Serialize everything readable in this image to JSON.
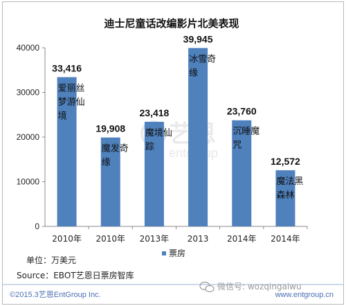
{
  "chart_data": {
    "type": "bar",
    "title": "迪士尼童话改编影片北美表现",
    "categories": [
      "2010年",
      "2010年",
      "2013年",
      "2013",
      "2014年",
      "2014年"
    ],
    "films": [
      "爱丽丝梦游仙境",
      "魔发奇缘",
      "魔境仙踪",
      "冰雪奇缘",
      "沉睡魔咒",
      "魔法黑森林"
    ],
    "series": [
      {
        "name": "票房",
        "values": [
          33416,
          19908,
          23418,
          39945,
          23760,
          12572
        ],
        "color": "#4f81bd"
      }
    ],
    "value_labels": [
      "33,416",
      "19,908",
      "23,418",
      "39,945",
      "23,760",
      "12,572"
    ],
    "ylim": [
      0,
      40000
    ],
    "yticks": [
      "0",
      "10000",
      "20000",
      "30000",
      "40000"
    ],
    "grid": false,
    "legend": "bottom"
  },
  "notes": {
    "unit": "单位：万美元",
    "source": "Source：EBOT艺恩日票房智库"
  },
  "footer": {
    "copyright": "©2015.3艺恩EntGroup Inc.",
    "website": "www.entgroup.cn"
  },
  "watermark": {
    "wechat": "微信号: wozqingaiwu",
    "logo_text": "艺恩",
    "logo_sub": "entgroup"
  }
}
